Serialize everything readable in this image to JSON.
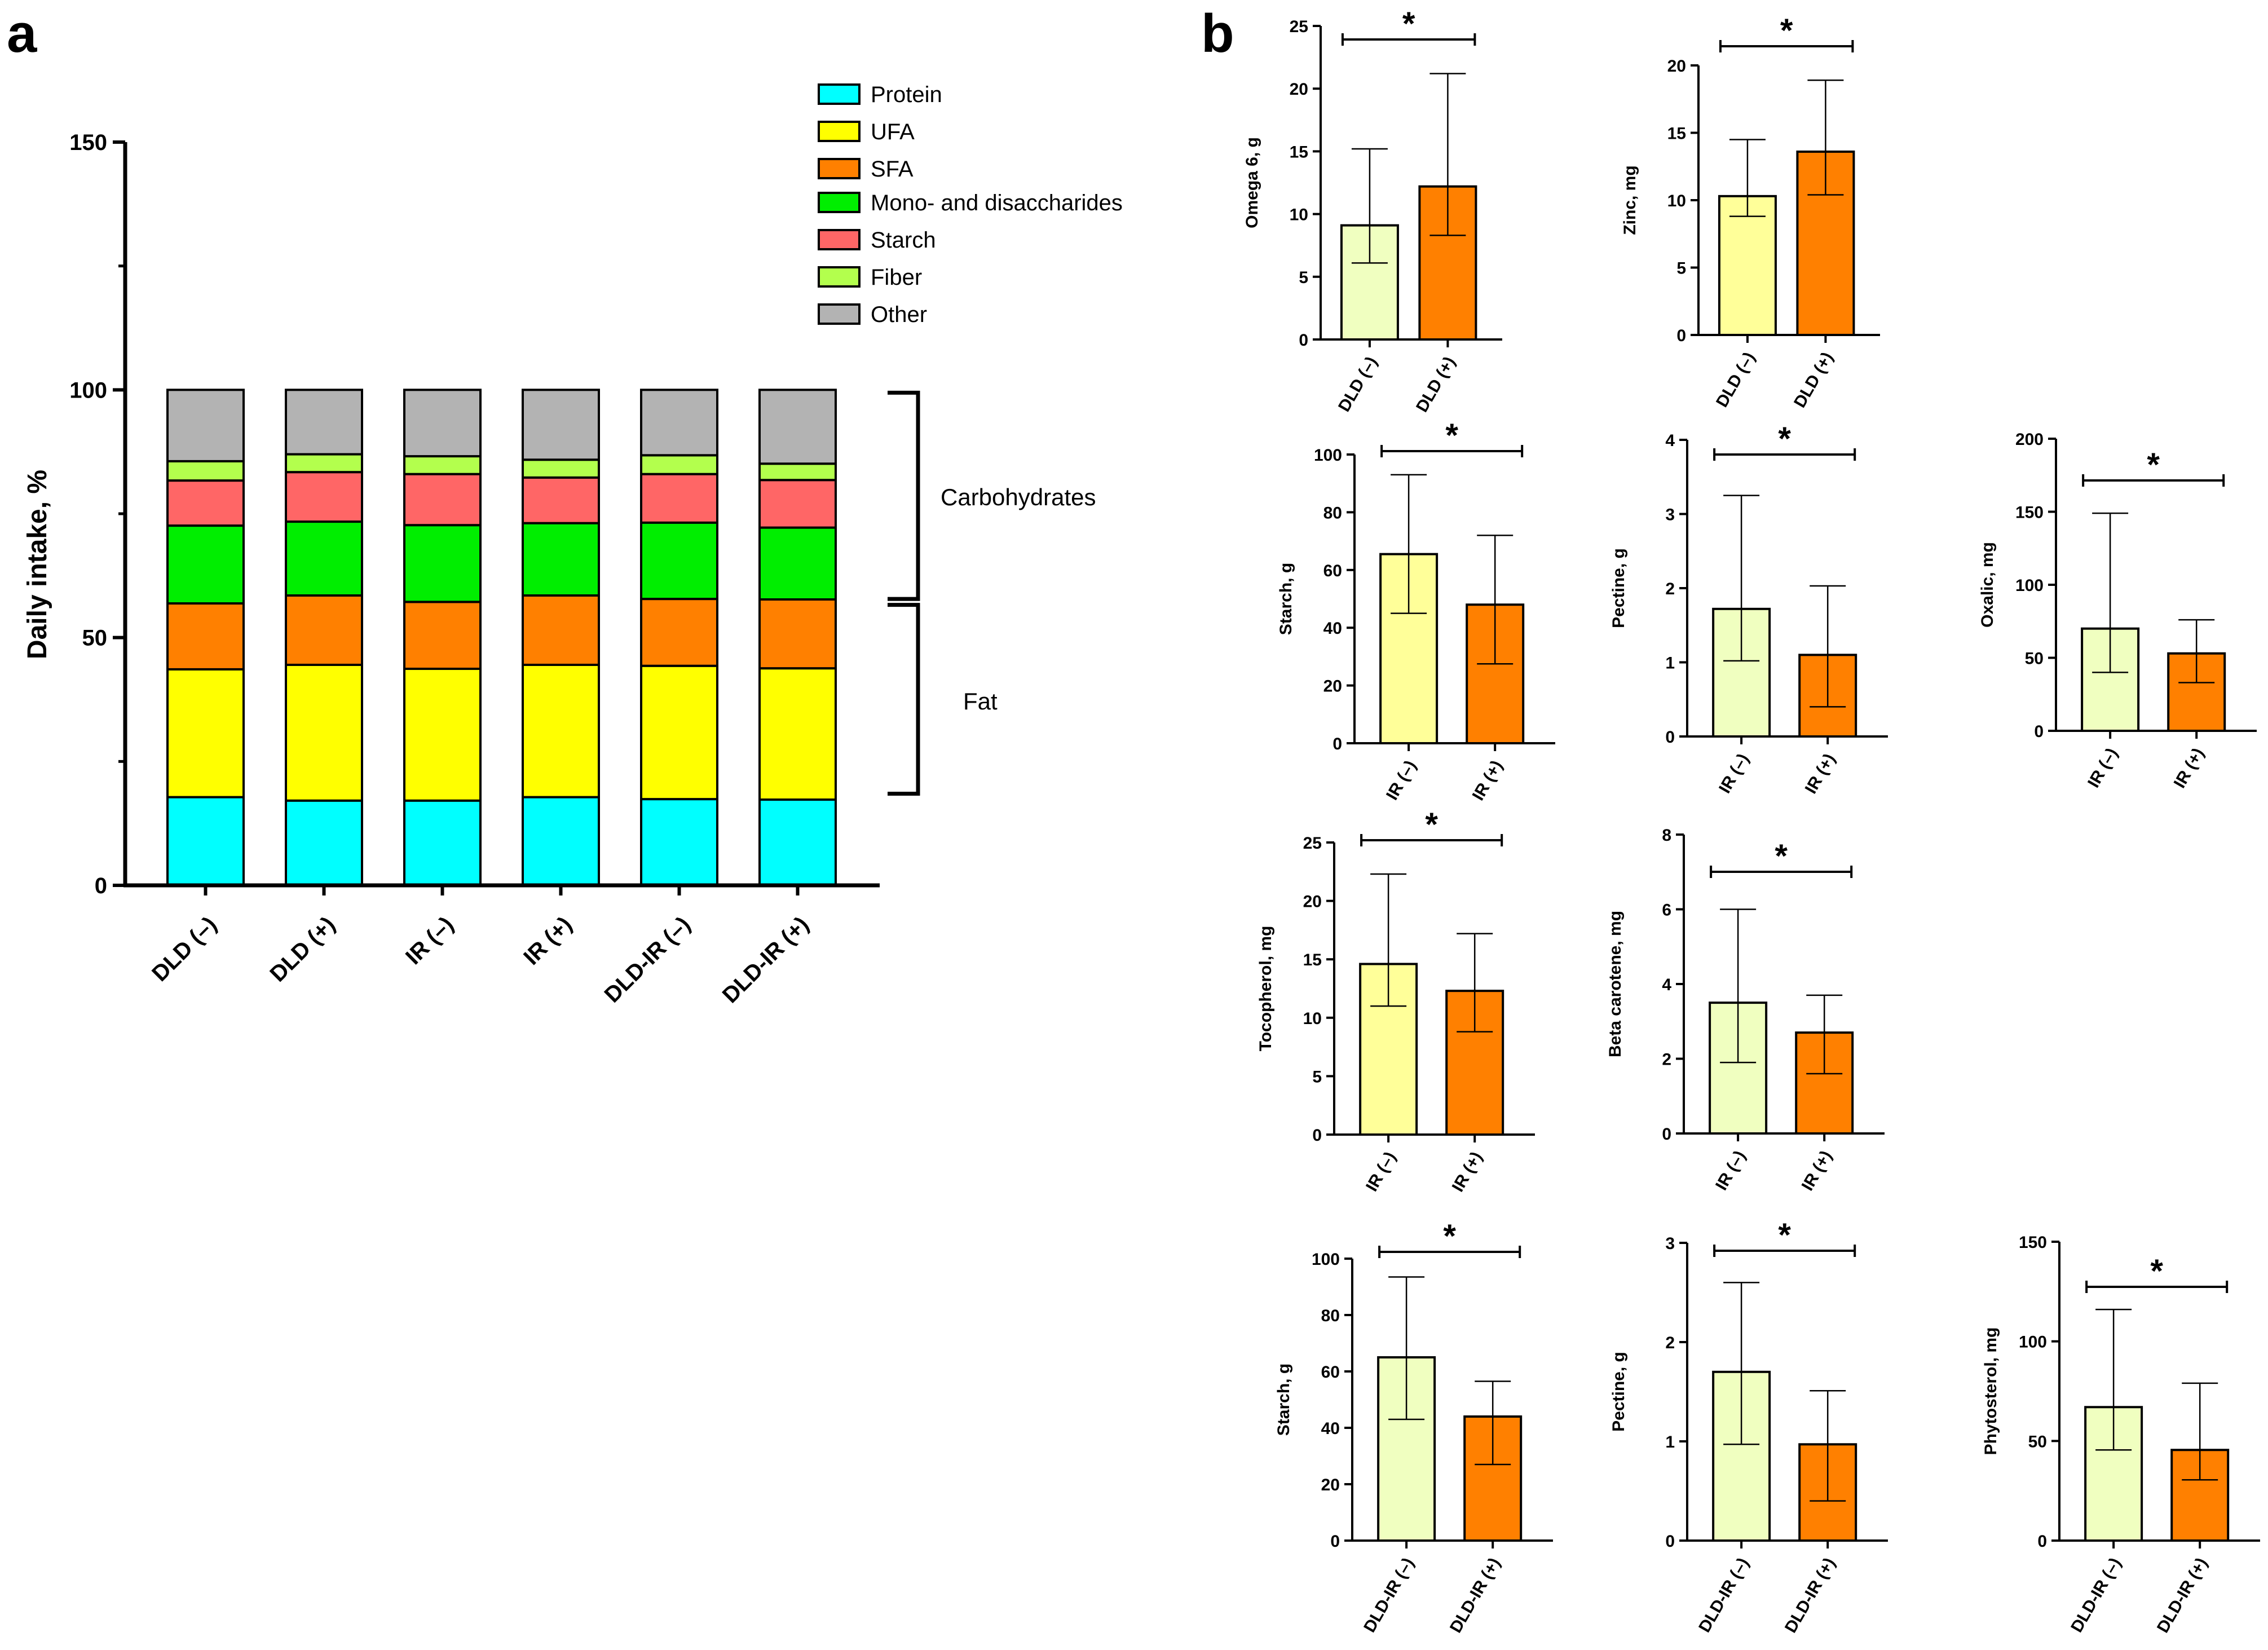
{
  "panel_a_label": "a",
  "panel_b_label": "b",
  "colors": {
    "Protein": "#00ffff",
    "UFA": "#ffff00",
    "SFA": "#ff8000",
    "Mono- and disaccharides": "#00ee00",
    "Starch": "#ff6666",
    "Fiber": "#b3ff4d",
    "Other": "#b3b3b3",
    "bar_neg_light_green": "#f0ffc0",
    "bar_neg_light_yellow": "#ffff99",
    "bar_pos": "#ff8000"
  },
  "braces": {
    "carbohydrates": "Carbohydrates",
    "fat": "Fat"
  },
  "chart_data": [
    {
      "id": "a",
      "type": "bar",
      "stacked": true,
      "title": "",
      "xlabel": "",
      "ylabel": "Daily intake, %",
      "ylim": [
        0,
        150
      ],
      "yticks": [
        "0",
        "50",
        "100",
        "150"
      ],
      "categories": [
        "DLD (–)",
        "DLD (+)",
        "IR (–)",
        "IR (+)",
        "DLD-IR (–)",
        "DLD-IR (+)"
      ],
      "series": [
        {
          "name": "Protein",
          "values": [
            17.8,
            17.1,
            17.1,
            17.8,
            17.4,
            17.3
          ]
        },
        {
          "name": "UFA",
          "values": [
            25.8,
            27.4,
            26.6,
            26.7,
            26.9,
            26.5
          ]
        },
        {
          "name": "SFA",
          "values": [
            13.3,
            14.0,
            13.5,
            14.0,
            13.5,
            13.9
          ]
        },
        {
          "name": "Mono- and disaccharides",
          "values": [
            15.7,
            14.9,
            15.5,
            14.6,
            15.4,
            14.5
          ]
        },
        {
          "name": "Starch",
          "values": [
            9.1,
            10.0,
            10.3,
            9.2,
            9.8,
            9.6
          ]
        },
        {
          "name": "Fiber",
          "values": [
            3.9,
            3.6,
            3.6,
            3.6,
            3.8,
            3.3
          ]
        },
        {
          "name": "Other",
          "values": [
            14.4,
            13.0,
            13.4,
            14.1,
            13.2,
            14.9
          ]
        }
      ],
      "legend": [
        "Protein",
        "UFA",
        "SFA",
        "Mono- and disaccharides",
        "Starch",
        "Fiber",
        "Other"
      ]
    },
    {
      "id": "b1",
      "type": "bar",
      "ylabel": "Omega 6, g",
      "ylim": [
        0,
        25
      ],
      "yticks": [
        "0",
        "5",
        "10",
        "15",
        "20",
        "25"
      ],
      "categories": [
        "DLD (–)",
        "DLD (+)"
      ],
      "values": [
        9.1,
        12.2
      ],
      "err_low": [
        6.1,
        8.3
      ],
      "err_high": [
        15.2,
        21.2
      ],
      "significance": "*"
    },
    {
      "id": "b2",
      "type": "bar",
      "ylabel": "Zinc, mg",
      "ylim": [
        0,
        20
      ],
      "yticks": [
        "0",
        "5",
        "10",
        "15",
        "20"
      ],
      "categories": [
        "DLD (–)",
        "DLD (+)"
      ],
      "values": [
        10.3,
        13.6
      ],
      "err_low": [
        8.8,
        10.4
      ],
      "err_high": [
        14.5,
        18.9
      ],
      "significance": "*"
    },
    {
      "id": "b3",
      "type": "bar",
      "ylabel": "Starch, g",
      "ylim": [
        0,
        100
      ],
      "yticks": [
        "0",
        "20",
        "40",
        "60",
        "80",
        "100"
      ],
      "categories": [
        "IR (–)",
        "IR (+)"
      ],
      "values": [
        65.5,
        48.0
      ],
      "err_low": [
        45.0,
        27.5
      ],
      "err_high": [
        93.0,
        72.0
      ],
      "significance": "*"
    },
    {
      "id": "b4",
      "type": "bar",
      "ylabel": "Pectine, g",
      "ylim": [
        0,
        4
      ],
      "yticks": [
        "0",
        "1",
        "2",
        "3",
        "4"
      ],
      "categories": [
        "IR (–)",
        "IR (+)"
      ],
      "values": [
        1.72,
        1.1
      ],
      "err_low": [
        1.02,
        0.4
      ],
      "err_high": [
        3.25,
        2.03
      ],
      "significance": "*"
    },
    {
      "id": "b5",
      "type": "bar",
      "ylabel": "Oxalic, mg",
      "ylim": [
        0,
        200
      ],
      "yticks": [
        "0",
        "50",
        "100",
        "150",
        "200"
      ],
      "categories": [
        "IR (–)",
        "IR (+)"
      ],
      "values": [
        70.0,
        53.0
      ],
      "err_low": [
        40.0,
        33.0
      ],
      "err_high": [
        149.0,
        76.0
      ],
      "significance": "*"
    },
    {
      "id": "b6",
      "type": "bar",
      "ylabel": "Tocopherol, mg",
      "ylim": [
        0,
        25
      ],
      "yticks": [
        "0",
        "5",
        "10",
        "15",
        "20",
        "25"
      ],
      "categories": [
        "IR (–)",
        "IR (+)"
      ],
      "values": [
        14.6,
        12.3
      ],
      "err_low": [
        11.0,
        8.8
      ],
      "err_high": [
        22.3,
        17.2
      ],
      "significance": "*"
    },
    {
      "id": "b7",
      "type": "bar",
      "ylabel": "Beta carotene, mg",
      "ylim": [
        0,
        8
      ],
      "yticks": [
        "0",
        "2",
        "4",
        "6",
        "8"
      ],
      "categories": [
        "IR (–)",
        "IR (+)"
      ],
      "values": [
        3.5,
        2.7
      ],
      "err_low": [
        1.9,
        1.6
      ],
      "err_high": [
        6.0,
        3.7
      ],
      "significance": "*"
    },
    {
      "id": "b8",
      "type": "bar",
      "ylabel": "Starch, g",
      "ylim": [
        0,
        100
      ],
      "yticks": [
        "0",
        "20",
        "40",
        "60",
        "80",
        "100"
      ],
      "categories": [
        "DLD-IR (–)",
        "DLD-IR (+)"
      ],
      "values": [
        65.0,
        44.0
      ],
      "err_low": [
        43.0,
        27.0
      ],
      "err_high": [
        93.5,
        56.5
      ],
      "significance": "*"
    },
    {
      "id": "b9",
      "type": "bar",
      "ylabel": "Pectine, g",
      "ylim": [
        0,
        3
      ],
      "yticks": [
        "0",
        "1",
        "2",
        "3"
      ],
      "categories": [
        "DLD-IR (–)",
        "DLD-IR (+)"
      ],
      "values": [
        1.7,
        0.97
      ],
      "err_low": [
        0.97,
        0.4
      ],
      "err_high": [
        2.6,
        1.51
      ],
      "significance": "*"
    },
    {
      "id": "b10",
      "type": "bar",
      "ylabel": "Phytosterol, mg",
      "ylim": [
        0,
        150
      ],
      "yticks": [
        "0",
        "50",
        "100",
        "150"
      ],
      "categories": [
        "DLD-IR (–)",
        "DLD-IR (+)"
      ],
      "values": [
        67.0,
        45.5
      ],
      "err_low": [
        45.5,
        30.5
      ],
      "err_high": [
        116.0,
        79.0
      ],
      "significance": "*"
    }
  ]
}
